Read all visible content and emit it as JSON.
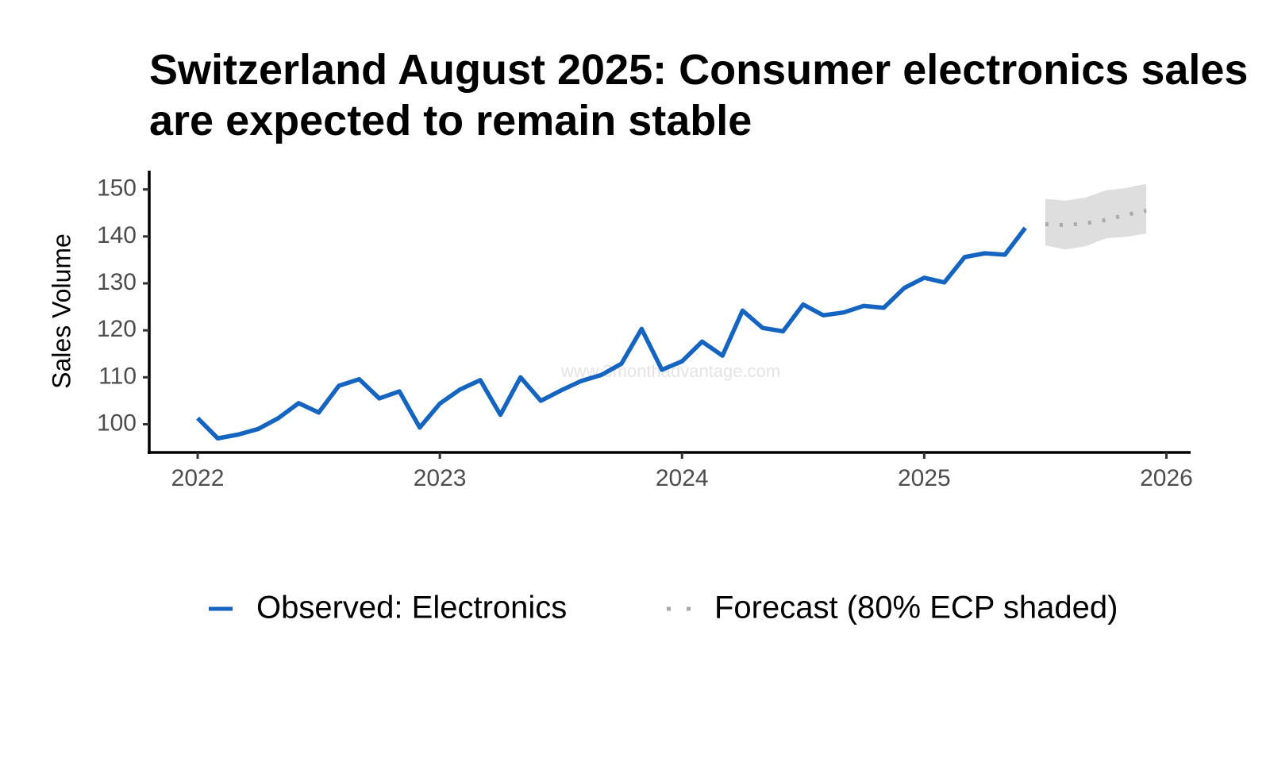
{
  "chart_data": {
    "type": "line",
    "title": "Switzerland August 2025: Consumer electronics sales are expected to remain stable",
    "y_label": "Sales Volume",
    "watermark": "www.3monthadvantage.com",
    "xlim": [
      2021.8,
      2026.1
    ],
    "xticks": [
      2022,
      2023,
      2024,
      2025,
      2026
    ],
    "ylim": [
      94,
      154
    ],
    "yticks": [
      100,
      110,
      120,
      130,
      140,
      150
    ],
    "series": [
      {
        "name": "Observed: Electronics",
        "color": "#1565c0",
        "style": "solid",
        "x": [
          2022,
          2022.083,
          2022.167,
          2022.25,
          2022.333,
          2022.417,
          2022.5,
          2022.583,
          2022.667,
          2022.75,
          2022.833,
          2022.917,
          2023,
          2023.083,
          2023.167,
          2023.25,
          2023.333,
          2023.417,
          2023.5,
          2023.583,
          2023.667,
          2023.75,
          2023.833,
          2023.917,
          2024,
          2024.083,
          2024.167,
          2024.25,
          2024.333,
          2024.417,
          2024.5,
          2024.583,
          2024.667,
          2024.75,
          2024.833,
          2024.917,
          2025,
          2025.083,
          2025.167,
          2025.25,
          2025.333,
          2025.417
        ],
        "values": [
          101.3,
          97,
          97.8,
          99,
          101.3,
          104.5,
          102.5,
          108.2,
          109.6,
          105.5,
          107,
          99.3,
          104.4,
          107.4,
          109.4,
          102,
          110,
          105,
          107.2,
          109.2,
          110.5,
          112.9,
          120.3,
          111.6,
          113.4,
          117.6,
          114.6,
          124.2,
          120.5,
          119.8,
          125.5,
          123.2,
          123.8,
          125.2,
          124.8,
          129,
          131.2,
          130.2,
          135.6,
          136.4,
          136.1,
          141.8
        ]
      },
      {
        "name": "Forecast (80% ECP shaded)",
        "color": "#aaaaaa",
        "style": "dotted",
        "band_color": "#dedede",
        "x": [
          2025.5,
          2025.583,
          2025.667,
          2025.75,
          2025.833,
          2025.917
        ],
        "values": [
          142.6,
          142.4,
          142.8,
          143.5,
          144.6,
          145.5
        ],
        "lower": [
          138.1,
          137.2,
          137.9,
          139.6,
          139.9,
          140.6
        ],
        "upper": [
          148,
          147.6,
          148.3,
          149.8,
          150.3,
          151.2
        ]
      }
    ]
  }
}
